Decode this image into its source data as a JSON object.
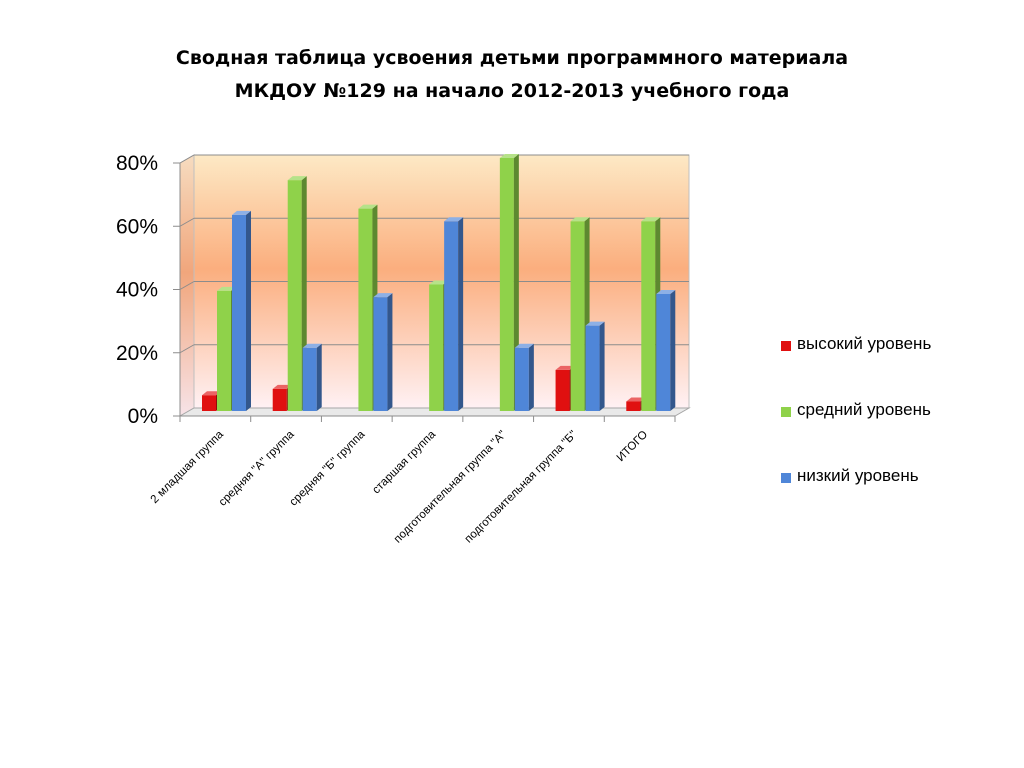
{
  "slide": {
    "title_line1": "Сводная таблица усвоения детьми программного материала",
    "title_line2": "МКДОУ №129 на начало 2012-2013 учебного года"
  },
  "chart_data": {
    "type": "bar",
    "style": "3d-clustered-column",
    "categories": [
      "2 младшая группа",
      "средняя \"А\" группа",
      "средняя \"Б\" группа",
      "старшая группа",
      "подготовительная группа \"А\"",
      "подготовительная группа \"Б\"",
      "ИТОГО"
    ],
    "series": [
      {
        "name": "высокий уровень",
        "color": "#e01010",
        "values": [
          5,
          7,
          0,
          0,
          0,
          13,
          3
        ]
      },
      {
        "name": "средний уровень",
        "color": "#8fd24a",
        "values": [
          38,
          73,
          64,
          40,
          80,
          60,
          60
        ]
      },
      {
        "name": "низкий уровень",
        "color": "#4f86d8",
        "values": [
          62,
          20,
          36,
          60,
          20,
          27,
          37
        ]
      }
    ],
    "yticks": [
      "0%",
      "20%",
      "40%",
      "60%",
      "80%"
    ],
    "ylim": [
      0,
      80
    ],
    "grid": true,
    "legend_position": "right"
  }
}
